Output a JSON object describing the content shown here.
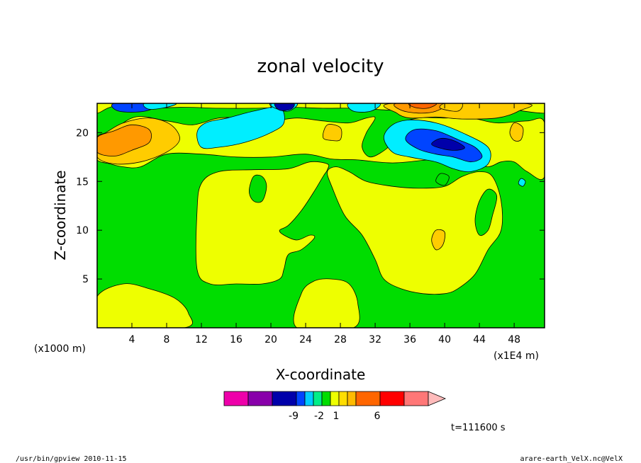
{
  "chart_data": {
    "type": "heatmap",
    "title": "zonal velocity",
    "xlabel": "X-coordinate",
    "ylabel": "Z-coordinate",
    "x_unit_label": "(x1E4 m)",
    "y_unit_label": "(x1000 m)",
    "xlim": [
      0,
      51.5
    ],
    "ylim": [
      0,
      23
    ],
    "x_ticks": [
      4,
      8,
      12,
      16,
      20,
      24,
      28,
      32,
      36,
      40,
      44,
      48
    ],
    "y_ticks": [
      5,
      10,
      15,
      20
    ],
    "background_level": "0 to 1",
    "contour_regions": [
      {
        "level": "1 to 2",
        "color": "#eeff00",
        "points": [
          [
            0,
            0
          ],
          [
            10,
            0
          ],
          [
            10.5,
            1.5
          ],
          [
            9,
            3
          ],
          [
            6,
            4
          ],
          [
            3,
            4.5
          ],
          [
            0,
            3.2
          ]
        ]
      },
      {
        "level": "1 to 2",
        "color": "#eeff00",
        "points": [
          [
            23,
            0
          ],
          [
            29.5,
            0
          ],
          [
            30,
            2.5
          ],
          [
            29,
            4.5
          ],
          [
            27,
            5
          ],
          [
            25,
            4.8
          ],
          [
            23.5,
            3.5
          ]
        ]
      },
      {
        "level": "1 to 2",
        "color": "#eeff00",
        "points": [
          [
            11.5,
            6
          ],
          [
            11.5,
            12
          ],
          [
            12,
            14.8
          ],
          [
            14,
            16
          ],
          [
            18,
            16.2
          ],
          [
            22,
            16.3
          ],
          [
            24.5,
            17
          ],
          [
            26.5,
            16.8
          ],
          [
            26.5,
            16.2
          ],
          [
            26,
            15.5
          ],
          [
            25,
            14
          ],
          [
            23.5,
            12
          ],
          [
            22,
            10.5
          ],
          [
            21,
            10
          ],
          [
            21.5,
            9.5
          ],
          [
            23,
            9
          ],
          [
            24.5,
            9.5
          ],
          [
            25,
            9.2
          ],
          [
            23.5,
            8
          ],
          [
            22,
            7.5
          ],
          [
            21.5,
            6
          ],
          [
            21,
            5
          ],
          [
            19,
            4.5
          ],
          [
            16,
            4.5
          ],
          [
            13,
            4.5
          ]
        ]
      },
      {
        "level": "1 to 2",
        "color": "#eeff00",
        "points": [
          [
            26.5,
            16
          ],
          [
            27,
            14.5
          ],
          [
            28.5,
            11.5
          ],
          [
            30.5,
            9.5
          ],
          [
            32,
            7
          ],
          [
            33,
            5
          ],
          [
            35,
            4
          ],
          [
            37.5,
            3.5
          ],
          [
            40,
            3.5
          ],
          [
            41.5,
            4
          ],
          [
            43.5,
            5.5
          ],
          [
            45,
            8
          ],
          [
            46.5,
            10
          ],
          [
            46.5,
            13
          ],
          [
            45.5,
            15.5
          ],
          [
            44,
            16
          ],
          [
            42,
            15.5
          ],
          [
            40,
            14.5
          ],
          [
            37,
            14.3
          ],
          [
            34,
            14.5
          ],
          [
            31,
            15
          ],
          [
            29,
            16
          ],
          [
            27.5,
            16.5
          ]
        ]
      },
      {
        "level": "1 to 2",
        "color": "#eeff00",
        "points": [
          [
            0,
            18.5
          ],
          [
            4,
            21.5
          ],
          [
            8,
            21.2
          ],
          [
            11,
            20.8
          ],
          [
            14,
            21.5
          ],
          [
            17,
            21.5
          ],
          [
            20,
            21.2
          ],
          [
            23,
            21.5
          ],
          [
            26,
            21.2
          ],
          [
            29,
            21
          ],
          [
            31,
            21.5
          ],
          [
            32,
            21.5
          ],
          [
            31,
            20
          ],
          [
            30.5,
            18.5
          ],
          [
            31.5,
            17.5
          ],
          [
            33.5,
            18.5
          ],
          [
            34,
            19.5
          ],
          [
            34.5,
            20.8
          ],
          [
            37,
            21.5
          ],
          [
            40,
            21.5
          ],
          [
            43,
            21.5
          ],
          [
            46,
            21
          ],
          [
            49.5,
            21.2
          ],
          [
            51.5,
            21
          ],
          [
            51.5,
            15.5
          ],
          [
            49.5,
            16
          ],
          [
            48,
            17
          ],
          [
            46.5,
            17
          ],
          [
            45,
            16.5
          ],
          [
            43,
            17
          ],
          [
            41,
            17.3
          ],
          [
            38,
            17.2
          ],
          [
            34,
            16.9
          ],
          [
            30,
            17.2
          ],
          [
            27,
            17.3
          ],
          [
            24,
            17.8
          ],
          [
            20,
            17.5
          ],
          [
            16,
            17.5
          ],
          [
            12,
            17.8
          ],
          [
            8,
            17.8
          ],
          [
            5,
            16.5
          ],
          [
            3,
            16.5
          ],
          [
            1.5,
            16.8
          ],
          [
            0,
            17.2
          ]
        ]
      },
      {
        "level": "1 to 2",
        "color": "#eeff00",
        "points": [
          [
            0,
            22
          ],
          [
            0,
            23
          ],
          [
            51.5,
            23
          ],
          [
            51.5,
            22
          ],
          [
            46,
            22.5
          ],
          [
            42,
            22
          ],
          [
            38,
            22.5
          ],
          [
            34,
            22.3
          ],
          [
            30,
            22.5
          ],
          [
            26,
            22.5
          ],
          [
            22,
            22.6
          ],
          [
            18,
            22.5
          ],
          [
            14,
            22.5
          ],
          [
            10,
            22.6
          ],
          [
            6,
            22.5
          ],
          [
            2,
            22.7
          ]
        ]
      },
      {
        "level": "2 to 3",
        "color": "#ffcc00",
        "points": [
          [
            0,
            17.5
          ],
          [
            2,
            16.8
          ],
          [
            5,
            17
          ],
          [
            8,
            18
          ],
          [
            9.5,
            19.3
          ],
          [
            8.5,
            20.8
          ],
          [
            6,
            21.5
          ],
          [
            3,
            21
          ],
          [
            1,
            20
          ],
          [
            0,
            19.5
          ]
        ]
      },
      {
        "level": "3 to 4",
        "color": "#ff9900",
        "points": [
          [
            0,
            18
          ],
          [
            2,
            17.6
          ],
          [
            4,
            18.2
          ],
          [
            6,
            19
          ],
          [
            6,
            20.3
          ],
          [
            4,
            20.8
          ],
          [
            2,
            20.2
          ],
          [
            0,
            19.5
          ]
        ]
      },
      {
        "level": "2 to 3",
        "color": "#ffcc00",
        "points": [
          [
            34,
            23
          ],
          [
            34.5,
            22
          ],
          [
            36,
            21.5
          ],
          [
            39,
            21.6
          ],
          [
            42,
            21.4
          ],
          [
            46,
            21.5
          ],
          [
            48.5,
            22.2
          ],
          [
            49,
            23
          ]
        ]
      },
      {
        "level": "3 to 4",
        "color": "#ff9900",
        "points": [
          [
            34.5,
            23
          ],
          [
            35,
            22.3
          ],
          [
            37,
            22
          ],
          [
            39,
            22.2
          ],
          [
            40,
            23
          ]
        ]
      },
      {
        "level": "4 to 5",
        "color": "#ff6600",
        "points": [
          [
            36,
            23
          ],
          [
            36.5,
            22.6
          ],
          [
            38,
            22.5
          ],
          [
            39,
            23
          ]
        ]
      },
      {
        "level": "-1 to 0",
        "color": "#00eeff",
        "points": [
          [
            11.5,
            20
          ],
          [
            12,
            18.5
          ],
          [
            14,
            18.5
          ],
          [
            17,
            19
          ],
          [
            20,
            20
          ],
          [
            21.5,
            21
          ],
          [
            21,
            22.6
          ],
          [
            18,
            22.2
          ],
          [
            15,
            21.5
          ],
          [
            12.5,
            21
          ]
        ]
      },
      {
        "level": "-1 to 0",
        "color": "#00eeff",
        "points": [
          [
            33,
            19.5
          ],
          [
            34,
            18
          ],
          [
            36,
            17.5
          ],
          [
            39,
            17
          ],
          [
            41,
            16.3
          ],
          [
            43,
            16
          ],
          [
            45,
            16.8
          ],
          [
            45,
            18.5
          ],
          [
            42,
            20
          ],
          [
            39,
            21
          ],
          [
            36,
            21.3
          ],
          [
            34,
            20.8
          ]
        ]
      },
      {
        "level": "-2 to -1",
        "color": "#0044ff",
        "points": [
          [
            35.5,
            19.3
          ],
          [
            37,
            18.3
          ],
          [
            39,
            17.8
          ],
          [
            41,
            17.5
          ],
          [
            43,
            17
          ],
          [
            44.3,
            17.5
          ],
          [
            43.5,
            18.5
          ],
          [
            41.5,
            19.3
          ],
          [
            39,
            20.2
          ],
          [
            36.5,
            20.3
          ]
        ]
      },
      {
        "level": "-3 to -2",
        "color": "#0000aa",
        "points": [
          [
            38.5,
            18.8
          ],
          [
            40,
            18.3
          ],
          [
            41.5,
            18.2
          ],
          [
            42.3,
            18.5
          ],
          [
            41,
            19.2
          ],
          [
            39.5,
            19.4
          ]
        ]
      },
      {
        "level": "-1 to 0",
        "color": "#00eeff",
        "points": [
          [
            20,
            23
          ],
          [
            20.5,
            22.5
          ],
          [
            22,
            22.2
          ],
          [
            23,
            23
          ]
        ]
      },
      {
        "level": "-1 to 0",
        "color": "#00eeff",
        "points": [
          [
            29,
            23
          ],
          [
            29.5,
            22.2
          ],
          [
            31.5,
            22.2
          ],
          [
            32.5,
            23
          ]
        ]
      },
      {
        "level": "-2 to -1",
        "color": "#0044ff",
        "points": [
          [
            2,
            23
          ],
          [
            2.5,
            22.2
          ],
          [
            5.5,
            22.2
          ],
          [
            7,
            23
          ]
        ]
      },
      {
        "level": "-1 to 0",
        "color": "#00eeff",
        "points": [
          [
            5.5,
            23
          ],
          [
            6,
            22.4
          ],
          [
            8,
            22.6
          ],
          [
            9,
            23
          ]
        ]
      },
      {
        "level": "-3 to -2",
        "color": "#0000aa",
        "points": [
          [
            20.5,
            23
          ],
          [
            21,
            22.3
          ],
          [
            22.3,
            22.4
          ],
          [
            22.6,
            23
          ]
        ]
      },
      {
        "level": "0 to 1",
        "color": "#00dd00",
        "points": [
          [
            43.5,
            11
          ],
          [
            44,
            13
          ],
          [
            45,
            14.2
          ],
          [
            46,
            13.5
          ],
          [
            45.5,
            11.5
          ],
          [
            45,
            10
          ],
          [
            44,
            9.5
          ]
        ]
      },
      {
        "level": "0 to 1",
        "color": "#00dd00",
        "points": [
          [
            17.5,
            14
          ],
          [
            18,
            15.5
          ],
          [
            19,
            15.5
          ],
          [
            19.5,
            14.5
          ],
          [
            19,
            13
          ],
          [
            18,
            13
          ]
        ]
      },
      {
        "level": "2 to 3",
        "color": "#ffcc00",
        "points": [
          [
            38.5,
            9
          ],
          [
            39,
            10
          ],
          [
            40,
            9.8
          ],
          [
            39.8,
            8.5
          ],
          [
            39,
            8
          ]
        ]
      },
      {
        "level": "2 to 3",
        "color": "#ffcc00",
        "points": [
          [
            47.5,
            20
          ],
          [
            48,
            21
          ],
          [
            49,
            20.5
          ],
          [
            48.8,
            19.3
          ],
          [
            48,
            19.2
          ]
        ]
      },
      {
        "level": "2 to 3",
        "color": "#ffcc00",
        "points": [
          [
            26,
            19.5
          ],
          [
            26.5,
            20.8
          ],
          [
            28,
            20.5
          ],
          [
            28,
            19.3
          ],
          [
            27,
            19.2
          ]
        ]
      },
      {
        "level": "2 to 3",
        "color": "#ffcc00",
        "points": [
          [
            39.5,
            22.5
          ],
          [
            40,
            23
          ],
          [
            42,
            23
          ],
          [
            41.5,
            22.2
          ]
        ]
      },
      {
        "level": "-1 to 0",
        "color": "#00eeff",
        "points": [
          [
            48.5,
            14.8
          ],
          [
            48.8,
            15.3
          ],
          [
            49.3,
            15
          ],
          [
            49,
            14.5
          ]
        ]
      },
      {
        "level": "0 to 1",
        "color": "#00dd00",
        "points": [
          [
            39,
            15
          ],
          [
            39.5,
            15.8
          ],
          [
            40.5,
            15.5
          ],
          [
            40,
            14.6
          ]
        ]
      }
    ],
    "colorbar": {
      "colors": [
        "#ee00aa",
        "#8800aa",
        "#0000aa",
        "#0044ff",
        "#00ccff",
        "#00ee88",
        "#00dd00",
        "#eeff00",
        "#ffdd00",
        "#ffbb00",
        "#ff6600",
        "#ff0000",
        "#ff7777",
        "#ffbbbb"
      ],
      "labels": [
        {
          "text": "-9",
          "index": 2
        },
        {
          "text": "-2",
          "index": 5
        },
        {
          "text": "1",
          "index": 7
        },
        {
          "text": "6",
          "index": 10
        }
      ]
    },
    "time_label": "t=111600 s"
  },
  "footer": {
    "left": "/usr/bin/gpview   2010-11-15",
    "right": "arare-earth_VelX.nc@VelX"
  }
}
